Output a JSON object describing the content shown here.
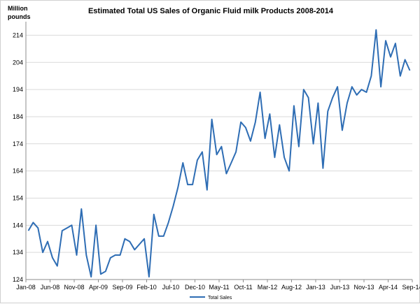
{
  "chart_data": {
    "type": "line",
    "title": "Estimated Total US Sales of Organic Fluid milk Products 2008-2014",
    "ylabel_line1": "Million",
    "ylabel_line2": "pounds",
    "xlabel": "",
    "ylim": [
      124,
      219
    ],
    "yticks": [
      124,
      134,
      144,
      154,
      164,
      174,
      184,
      194,
      204,
      214
    ],
    "x_tick_labels": [
      "Jan-08",
      "Jun-08",
      "Nov-08",
      "Apr-09",
      "Sep-09",
      "Feb-10",
      "Jul-10",
      "Dec-10",
      "May-11",
      "Oct-11",
      "Mar-12",
      "Aug-12",
      "Jan-13",
      "Jun-13",
      "Nov-13",
      "Apr-14",
      "Sep-14"
    ],
    "x_tick_every_months": 5,
    "grid": true,
    "legend_position": "bottom-center",
    "line_color": "#2e6db4",
    "series": [
      {
        "name": "Total Sales",
        "start": "Jan-08",
        "values": [
          142,
          145,
          143,
          134,
          138,
          132,
          129,
          142,
          143,
          144,
          133,
          150,
          133,
          125,
          144,
          126,
          127,
          132,
          133,
          133,
          139,
          138,
          135,
          137,
          139,
          125,
          148,
          140,
          140,
          145,
          151,
          158,
          167,
          159,
          159,
          168,
          171,
          157,
          183,
          170,
          173,
          163,
          167,
          171,
          182,
          180,
          175,
          182,
          193,
          176,
          185,
          169,
          181,
          169,
          164,
          188,
          173,
          194,
          191,
          174,
          189,
          165,
          186,
          191,
          195,
          179,
          189,
          195,
          192,
          194,
          193,
          199,
          216,
          195,
          212,
          206,
          211,
          199,
          205,
          201
        ]
      }
    ]
  }
}
